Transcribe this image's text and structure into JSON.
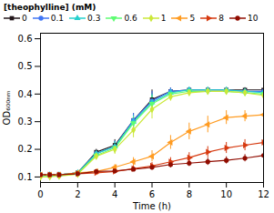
{
  "chart_data": {
    "type": "line",
    "title": "[theophylline] (mM)",
    "xlabel": "Time (h)",
    "ylabel": "OD₆₀₀ₙₘ",
    "xlim": [
      0,
      12
    ],
    "ylim": [
      0.08,
      0.62
    ],
    "xticks": [
      0,
      2,
      4,
      6,
      8,
      10,
      12
    ],
    "yticks": [
      0.1,
      0.2,
      0.3,
      0.4,
      0.5,
      0.6
    ],
    "grid": false,
    "legend": "top",
    "x": [
      0,
      0.5,
      1,
      2,
      3,
      4,
      5,
      6,
      7,
      8,
      9,
      10,
      11,
      12
    ],
    "series": [
      {
        "name": "0",
        "marker": "square",
        "values": [
          0.108,
          0.108,
          0.108,
          0.115,
          0.19,
          0.215,
          0.305,
          0.38,
          0.41,
          0.415,
          0.415,
          0.415,
          0.415,
          0.415
        ],
        "errors": [
          0.003,
          0.003,
          0.003,
          0.005,
          0.01,
          0.02,
          0.025,
          0.035,
          0.012,
          0.008,
          0.008,
          0.008,
          0.008,
          0.008
        ]
      },
      {
        "name": "0.1",
        "marker": "circle",
        "values": [
          0.108,
          0.108,
          0.108,
          0.115,
          0.185,
          0.21,
          0.305,
          0.375,
          0.41,
          0.415,
          0.415,
          0.415,
          0.41,
          0.41
        ],
        "errors": [
          0.003,
          0.003,
          0.003,
          0.005,
          0.01,
          0.02,
          0.025,
          0.035,
          0.012,
          0.008,
          0.008,
          0.008,
          0.008,
          0.008
        ]
      },
      {
        "name": "0.3",
        "marker": "triangle-up",
        "values": [
          0.108,
          0.108,
          0.108,
          0.115,
          0.185,
          0.21,
          0.3,
          0.37,
          0.405,
          0.415,
          0.415,
          0.415,
          0.41,
          0.405
        ],
        "errors": [
          0.003,
          0.003,
          0.003,
          0.005,
          0.01,
          0.018,
          0.022,
          0.03,
          0.012,
          0.008,
          0.008,
          0.008,
          0.008,
          0.008
        ]
      },
      {
        "name": "0.6",
        "marker": "triangle-down",
        "values": [
          0.102,
          0.103,
          0.105,
          0.112,
          0.178,
          0.205,
          0.295,
          0.365,
          0.4,
          0.41,
          0.41,
          0.41,
          0.405,
          0.4
        ],
        "errors": [
          0.003,
          0.003,
          0.003,
          0.005,
          0.01,
          0.018,
          0.022,
          0.03,
          0.012,
          0.008,
          0.008,
          0.008,
          0.008,
          0.008
        ]
      },
      {
        "name": "1",
        "marker": "diamond",
        "values": [
          0.1,
          0.101,
          0.103,
          0.11,
          0.175,
          0.2,
          0.27,
          0.345,
          0.39,
          0.405,
          0.41,
          0.41,
          0.405,
          0.395
        ],
        "errors": [
          0.003,
          0.003,
          0.003,
          0.005,
          0.01,
          0.018,
          0.028,
          0.035,
          0.015,
          0.01,
          0.008,
          0.008,
          0.008,
          0.008
        ]
      },
      {
        "name": "5",
        "marker": "triangle-left",
        "values": [
          0.108,
          0.108,
          0.108,
          0.115,
          0.12,
          0.135,
          0.155,
          0.175,
          0.225,
          0.265,
          0.29,
          0.315,
          0.32,
          0.325
        ],
        "errors": [
          0.003,
          0.003,
          0.003,
          0.005,
          0.008,
          0.01,
          0.015,
          0.02,
          0.025,
          0.03,
          0.03,
          0.025,
          0.02,
          0.02
        ]
      },
      {
        "name": "8",
        "marker": "triangle-right",
        "values": [
          0.108,
          0.108,
          0.108,
          0.112,
          0.115,
          0.12,
          0.13,
          0.14,
          0.155,
          0.17,
          0.19,
          0.205,
          0.215,
          0.225
        ],
        "errors": [
          0.003,
          0.003,
          0.003,
          0.004,
          0.005,
          0.008,
          0.01,
          0.012,
          0.015,
          0.018,
          0.02,
          0.02,
          0.02,
          0.018
        ]
      },
      {
        "name": "10",
        "marker": "circle",
        "values": [
          0.108,
          0.108,
          0.108,
          0.112,
          0.12,
          0.122,
          0.128,
          0.135,
          0.145,
          0.15,
          0.155,
          0.16,
          0.168,
          0.178
        ],
        "errors": [
          0.003,
          0.003,
          0.003,
          0.004,
          0.005,
          0.006,
          0.008,
          0.01,
          0.012,
          0.012,
          0.013,
          0.013,
          0.013,
          0.013
        ]
      }
    ]
  }
}
